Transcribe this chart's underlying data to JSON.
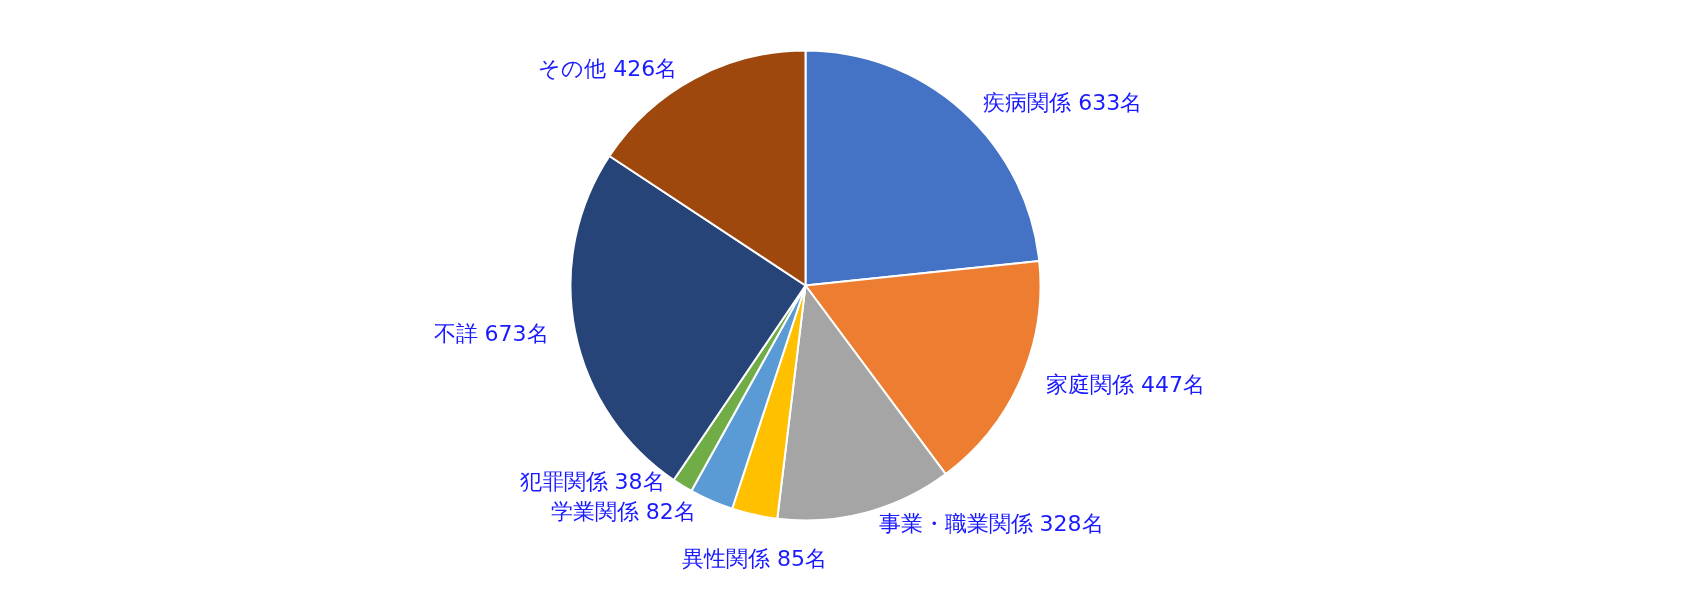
{
  "chart_data": {
    "type": "pie",
    "categories": [
      "疾病関係",
      "家庭関係",
      "事業・職業関係",
      "異性関係",
      "学業関係",
      "犯罪関係",
      "不詳",
      "その他"
    ],
    "values": [
      633,
      447,
      328,
      85,
      82,
      38,
      673,
      426
    ],
    "value_labels": [
      "633名",
      "447名",
      "328名",
      "85名",
      "82名",
      "38名",
      "673名",
      "426名"
    ],
    "colors": [
      "#4472c4",
      "#ed7d31",
      "#a5a5a5",
      "#ffc000",
      "#5b9bd5",
      "#70ad47",
      "#264478",
      "#9e480e"
    ],
    "legend": false
  }
}
